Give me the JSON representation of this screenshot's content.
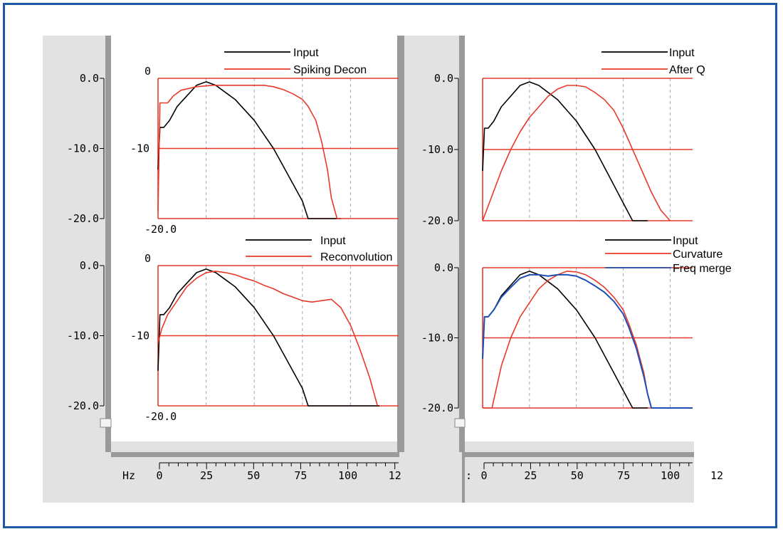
{
  "colors": {
    "frame": "#1c5aa6",
    "panel_bg": "#e2e2e2",
    "panel_dark": "#9a9a9a",
    "input": "#000000",
    "processed": "#e8392b",
    "freq_merge": "#1f4fb5",
    "grid": "#9aa9bf"
  },
  "axis": {
    "hz_label": "Hz",
    "x_ticks": [
      "0",
      "25",
      "50",
      "75",
      "100",
      "12"
    ],
    "x_ticks_right": [
      "0",
      "25",
      "50",
      "75",
      "100",
      "12"
    ],
    "right_axis_prefix": ":"
  },
  "chart_data": [
    {
      "type": "line",
      "title": "",
      "xlabel": "Hz",
      "ylabel": "",
      "xlim": [
        0,
        125
      ],
      "ylim": [
        -20,
        0
      ],
      "db_ticks": [
        "0.0",
        "-10.0",
        "-20.0"
      ],
      "inner_labels": [
        "0",
        "-10",
        "-20.0"
      ],
      "legend": [
        "Input",
        "Spiking Decon"
      ],
      "series": [
        {
          "name": "Input",
          "x": [
            0,
            1,
            3,
            6,
            10,
            15,
            20,
            25,
            30,
            35,
            40,
            45,
            50,
            55,
            60,
            65,
            70,
            75,
            78,
            95
          ],
          "values": [
            -13,
            -7,
            -7,
            -6,
            -4,
            -2.5,
            -1,
            -0.5,
            -1,
            -2,
            -3,
            -4.5,
            -6,
            -8,
            -10,
            -12.5,
            -15,
            -17.5,
            -20,
            -20
          ]
        },
        {
          "name": "Spiking Decon",
          "x": [
            0,
            1,
            5,
            8,
            12,
            20,
            28,
            35,
            42,
            50,
            55,
            60,
            65,
            70,
            75,
            78,
            82,
            85,
            88,
            90,
            93,
            95
          ],
          "values": [
            -19,
            -3.5,
            -3.5,
            -2.5,
            -1.7,
            -1.2,
            -1,
            -1,
            -1,
            -1,
            -1,
            -1.2,
            -1.6,
            -2.2,
            -3,
            -4,
            -6,
            -9,
            -13,
            -17,
            -20,
            -20
          ]
        }
      ]
    },
    {
      "type": "line",
      "title": "",
      "xlabel": "Hz",
      "ylabel": "",
      "xlim": [
        0,
        112
      ],
      "ylim": [
        -20,
        0
      ],
      "db_ticks": [
        "0.0",
        "-10.0",
        "-20.0"
      ],
      "inner_labels": [],
      "legend": [
        "Input",
        "After Q"
      ],
      "series": [
        {
          "name": "Input",
          "x": [
            0,
            1,
            3,
            6,
            10,
            15,
            20,
            25,
            30,
            35,
            40,
            45,
            50,
            55,
            60,
            65,
            70,
            75,
            80,
            88
          ],
          "values": [
            -13,
            -7,
            -7,
            -6,
            -4,
            -2.5,
            -1,
            -0.5,
            -1,
            -2,
            -3,
            -4.5,
            -6,
            -8,
            -10,
            -12.5,
            -15,
            -17.5,
            -20,
            -20
          ]
        },
        {
          "name": "After Q",
          "x": [
            0,
            5,
            10,
            15,
            20,
            25,
            30,
            35,
            40,
            45,
            50,
            55,
            60,
            65,
            70,
            75,
            80,
            85,
            90,
            95,
            100
          ],
          "values": [
            -20,
            -16.5,
            -13,
            -10,
            -7.5,
            -5.5,
            -4,
            -2.5,
            -1.5,
            -1,
            -1,
            -1.2,
            -2,
            -3,
            -4.5,
            -7,
            -10,
            -13,
            -16,
            -18.5,
            -20
          ]
        }
      ]
    },
    {
      "type": "line",
      "title": "",
      "xlabel": "Hz",
      "ylabel": "",
      "xlim": [
        0,
        125
      ],
      "ylim": [
        -20,
        0
      ],
      "db_ticks": [
        "0.0",
        "-10.0",
        "-20.0"
      ],
      "inner_labels": [
        "0",
        "-10",
        "-20.0"
      ],
      "legend": [
        "Input",
        "Reconvolution"
      ],
      "series": [
        {
          "name": "Input",
          "x": [
            0,
            1,
            3,
            6,
            10,
            15,
            20,
            25,
            30,
            35,
            40,
            45,
            50,
            55,
            60,
            65,
            70,
            75,
            78,
            115
          ],
          "values": [
            -15,
            -7,
            -7,
            -6,
            -4,
            -2.5,
            -1,
            -0.5,
            -1,
            -2,
            -3,
            -4.5,
            -6,
            -8,
            -10,
            -12.5,
            -15,
            -17.5,
            -20,
            -20
          ]
        },
        {
          "name": "Reconvolution",
          "x": [
            0,
            2,
            5,
            10,
            15,
            20,
            25,
            30,
            35,
            40,
            45,
            50,
            55,
            60,
            65,
            70,
            75,
            80,
            85,
            90,
            95,
            100,
            105,
            110,
            114
          ],
          "values": [
            -11,
            -9,
            -7,
            -5,
            -3,
            -1.8,
            -1,
            -0.8,
            -1,
            -1.3,
            -1.8,
            -2.2,
            -2.8,
            -3.3,
            -4,
            -4.5,
            -5,
            -5.2,
            -5,
            -4.8,
            -6,
            -8.5,
            -12,
            -16,
            -20
          ]
        }
      ]
    },
    {
      "type": "line",
      "title": "",
      "xlabel": "Hz",
      "ylabel": "",
      "xlim": [
        0,
        112
      ],
      "ylim": [
        -20,
        0
      ],
      "db_ticks": [
        "0.0",
        "-10.0",
        "-20.0"
      ],
      "inner_labels": [],
      "legend": [
        "Input",
        "Curvature",
        "Freq merge"
      ],
      "series": [
        {
          "name": "Input",
          "x": [
            0,
            1,
            3,
            6,
            10,
            15,
            20,
            25,
            30,
            35,
            40,
            45,
            50,
            55,
            60,
            65,
            70,
            75,
            80,
            88
          ],
          "values": [
            -13,
            -7,
            -7,
            -6,
            -4,
            -2.5,
            -1,
            -0.5,
            -1,
            -2,
            -3,
            -4.5,
            -6,
            -8,
            -10,
            -12.5,
            -15,
            -17.5,
            -20,
            -20
          ]
        },
        {
          "name": "Curvature",
          "x": [
            0,
            5,
            10,
            15,
            20,
            25,
            30,
            35,
            40,
            45,
            50,
            55,
            60,
            65,
            70,
            75,
            78,
            82,
            86,
            88,
            90
          ],
          "values": [
            -20,
            -20,
            -14,
            -10,
            -7,
            -5,
            -3,
            -1.8,
            -1,
            -0.5,
            -0.6,
            -1,
            -1.8,
            -2.8,
            -4.2,
            -6,
            -8,
            -11,
            -15,
            -18,
            -20
          ]
        },
        {
          "name": "Freq merge",
          "x": [
            0,
            1,
            3,
            6,
            10,
            15,
            20,
            25,
            30,
            35,
            40,
            45,
            50,
            55,
            60,
            65,
            70,
            75,
            78,
            82,
            86,
            88,
            90,
            112
          ],
          "values": [
            -13,
            -7,
            -7,
            -6,
            -4.2,
            -2.8,
            -1.5,
            -1,
            -1,
            -1.2,
            -1,
            -1,
            -1.2,
            -1.8,
            -2.6,
            -3.5,
            -4.8,
            -6.6,
            -8.5,
            -11.5,
            -15.5,
            -18,
            -20,
            -20
          ]
        }
      ]
    }
  ]
}
